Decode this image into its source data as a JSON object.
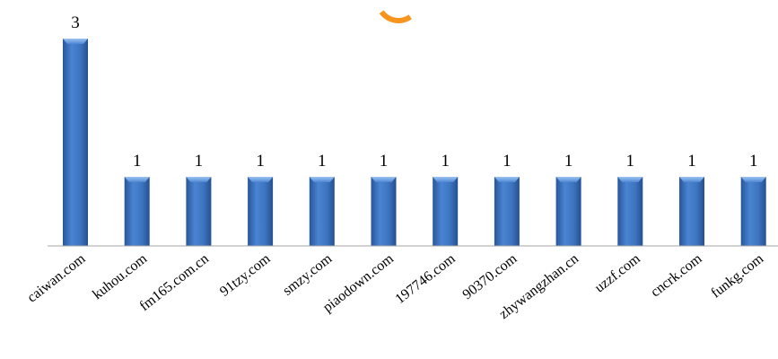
{
  "colors": {
    "bar_fill": "#3d74bf",
    "bar_light": "#6d9ee0",
    "bar_dark": "#28569a",
    "axis": "#a6a6a6",
    "text": "#000000",
    "accent": "#f7941d"
  },
  "chart_data": {
    "type": "bar",
    "categories": [
      "caiwan.com",
      "kuhou.com",
      "fm165.com.cn",
      "91tzy.com",
      "smzy.com",
      "piaodown.com",
      "197746.com",
      "90370.com",
      "zhywangzhan.cn",
      "uzzf.com",
      "cncrk.com",
      "funkg.com"
    ],
    "values": [
      3,
      1,
      1,
      1,
      1,
      1,
      1,
      1,
      1,
      1,
      1,
      1
    ],
    "data_labels": [
      "3",
      "1",
      "1",
      "1",
      "1",
      "1",
      "1",
      "1",
      "1",
      "1",
      "1",
      "1"
    ],
    "ylim": [
      0,
      3
    ],
    "grid": false,
    "legend": "none",
    "title": "",
    "xlabel": "",
    "ylabel": ""
  }
}
